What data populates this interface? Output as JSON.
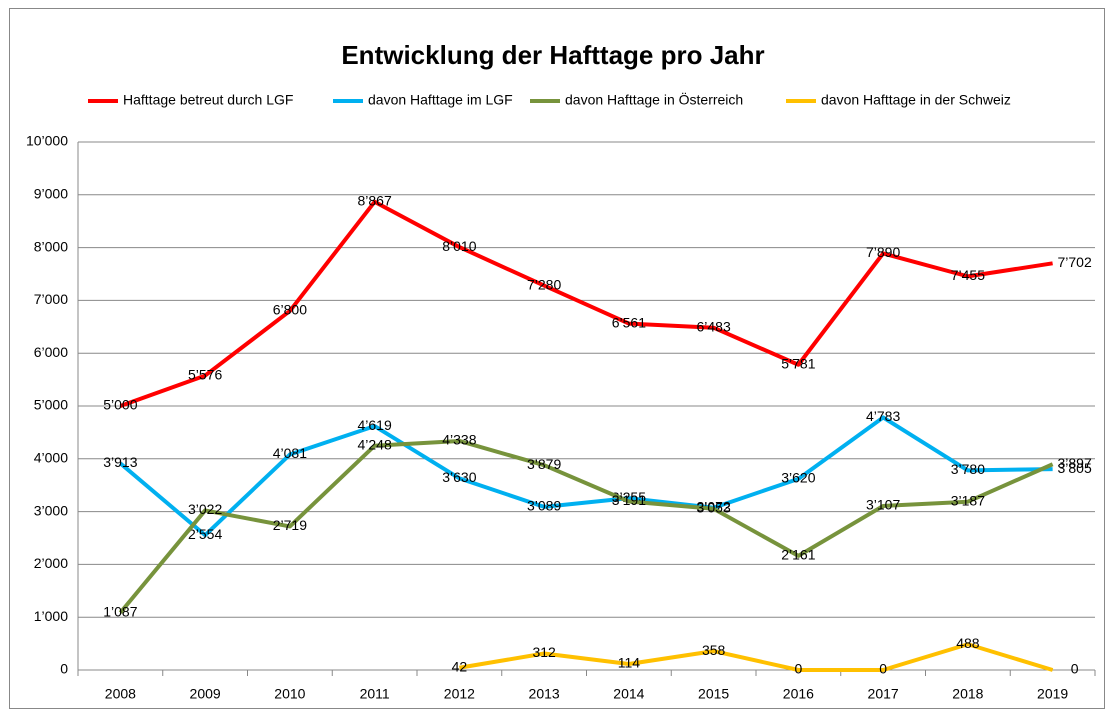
{
  "chart_data": {
    "type": "line",
    "title": "Entwicklung der Hafttage pro Jahr",
    "categories": [
      "2008",
      "2009",
      "2010",
      "2011",
      "2012",
      "2013",
      "2014",
      "2015",
      "2016",
      "2017",
      "2018",
      "2019"
    ],
    "series": [
      {
        "name": "Hafttage betreut durch LGF",
        "color": "#ff0000",
        "values": [
          5000,
          5576,
          6800,
          8867,
          8010,
          7280,
          6561,
          6483,
          5781,
          7890,
          7455,
          7702
        ],
        "value_labels": [
          "5’000",
          "5’576",
          "6’800",
          "8’867",
          "8’010",
          "7’280",
          "6’561",
          "6’483",
          "5’781",
          "7’890",
          "7’455",
          "7’702"
        ]
      },
      {
        "name": "davon Hafttage im LGF",
        "color": "#00b0f0",
        "values": [
          3913,
          2554,
          4081,
          4619,
          3630,
          3089,
          3255,
          3072,
          3620,
          4783,
          3780,
          3805
        ],
        "value_labels": [
          "3’913",
          "2’554",
          "4’081",
          "4’619",
          "3’630",
          "3’089",
          "3’255",
          "3’072",
          "3’620",
          "4’783",
          "3’780",
          "3’805"
        ]
      },
      {
        "name": "davon Hafttage in Österreich",
        "color": "#77933c",
        "values": [
          1087,
          3022,
          2719,
          4248,
          4338,
          3879,
          3191,
          3053,
          2161,
          3107,
          3187,
          3897
        ],
        "value_labels": [
          "1’087",
          "3’022",
          "2’719",
          "4’248",
          "4’338",
          "3’879",
          "3’191",
          "3’053",
          "2’161",
          "3’107",
          "3’187",
          "3’897"
        ]
      },
      {
        "name": "davon Hafttage in der Schweiz",
        "color": "#ffc000",
        "values": [
          null,
          null,
          null,
          null,
          42,
          312,
          114,
          358,
          0,
          0,
          488,
          0
        ]
      }
    ],
    "ylim": [
      0,
      10000
    ],
    "yticks": [
      0,
      {
        "value": 1000,
        "label": "1’000"
      },
      {
        "value": 2000,
        "label": "2’000"
      },
      {
        "value": 3000,
        "label": "3’000"
      },
      {
        "value": 4000,
        "label": "4’000"
      },
      {
        "value": 5000,
        "label": "5’000"
      },
      {
        "value": 6000,
        "label": "6’000"
      },
      {
        "value": 7000,
        "label": "7’000"
      },
      {
        "value": 8000,
        "label": "8’000"
      },
      {
        "value": 9000,
        "label": "9’000"
      },
      {
        "value": 10000,
        "label": "10’000"
      }
    ],
    "grid": true
  }
}
